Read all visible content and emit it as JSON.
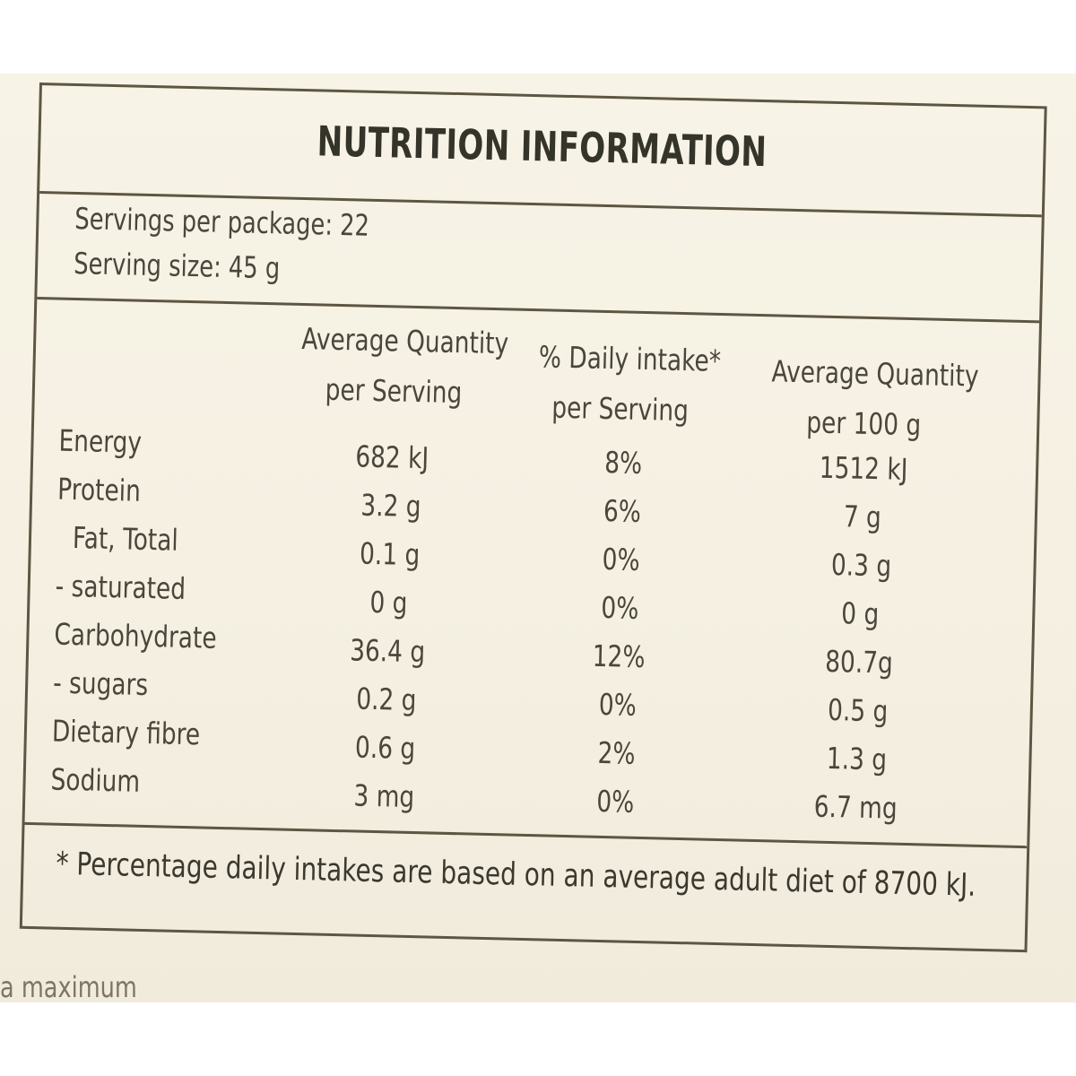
{
  "label": {
    "title": "NUTRITION INFORMATION",
    "servings_per_package": "Servings per package: 22",
    "serving_size": "Serving size: 45 g",
    "columns": [
      {
        "line1": "Average Quantity",
        "line2": "per Serving"
      },
      {
        "line1": "% Daily intake*",
        "line2": "per Serving"
      },
      {
        "line1": "Average Quantity",
        "line2": "per 100 g"
      }
    ],
    "row_labels": [
      "Energy",
      "Protein",
      "Fat, Total",
      "- saturated",
      "Carbohydrate",
      "- sugars",
      "Dietary fibre",
      "Sodium"
    ],
    "per_serving": [
      "682 kJ",
      "3.2 g",
      "0.1 g",
      "0 g",
      "36.4 g",
      "0.2 g",
      "0.6 g",
      "3 mg"
    ],
    "daily_intake": [
      "8%",
      "6%",
      "0%",
      "0%",
      "12%",
      "0%",
      "2%",
      "0%"
    ],
    "per_100g": [
      "1512 kJ",
      "7 g",
      "0.3 g",
      "0 g",
      "80.7g",
      "0.5 g",
      "1.3 g",
      "6.7 mg"
    ],
    "footnote": "* Percentage daily intakes are based on an average adult diet of 8700 kJ.",
    "cutoff_text": "a maximum"
  },
  "colors": {
    "background": "#f5f0e2",
    "ink": "#4a463b",
    "border": "#5e5643"
  }
}
